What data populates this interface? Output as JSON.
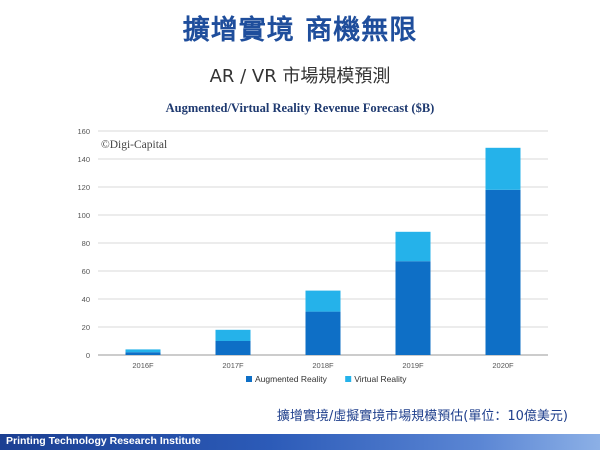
{
  "header": {
    "title": "擴增實境 商機無限",
    "subtitle": "AR / VR 市場規模預測"
  },
  "chart_data": {
    "type": "bar",
    "stacked": true,
    "title": "Augmented/Virtual Reality Revenue Forecast ($B)",
    "watermark": "©Digi-Capital",
    "categories": [
      "2016F",
      "2017F",
      "2018F",
      "2019F",
      "2020F"
    ],
    "series": [
      {
        "name": "Augmented Reality",
        "color": "#0e6fc6",
        "values": [
          2,
          10,
          31,
          67,
          118
        ]
      },
      {
        "name": "Virtual Reality",
        "color": "#25b2ea",
        "values": [
          2,
          8,
          15,
          21,
          30
        ]
      }
    ],
    "ylim": [
      0,
      160
    ],
    "yticks": [
      "0",
      "20",
      "40",
      "60",
      "80",
      "100",
      "120",
      "140",
      "160"
    ],
    "grid": true,
    "legend": "bottom"
  },
  "footnote": "擴增實境/虛擬實境市場規模預估(單位：10億美元)",
  "footer": {
    "label": "Printing Technology Research Institute"
  }
}
